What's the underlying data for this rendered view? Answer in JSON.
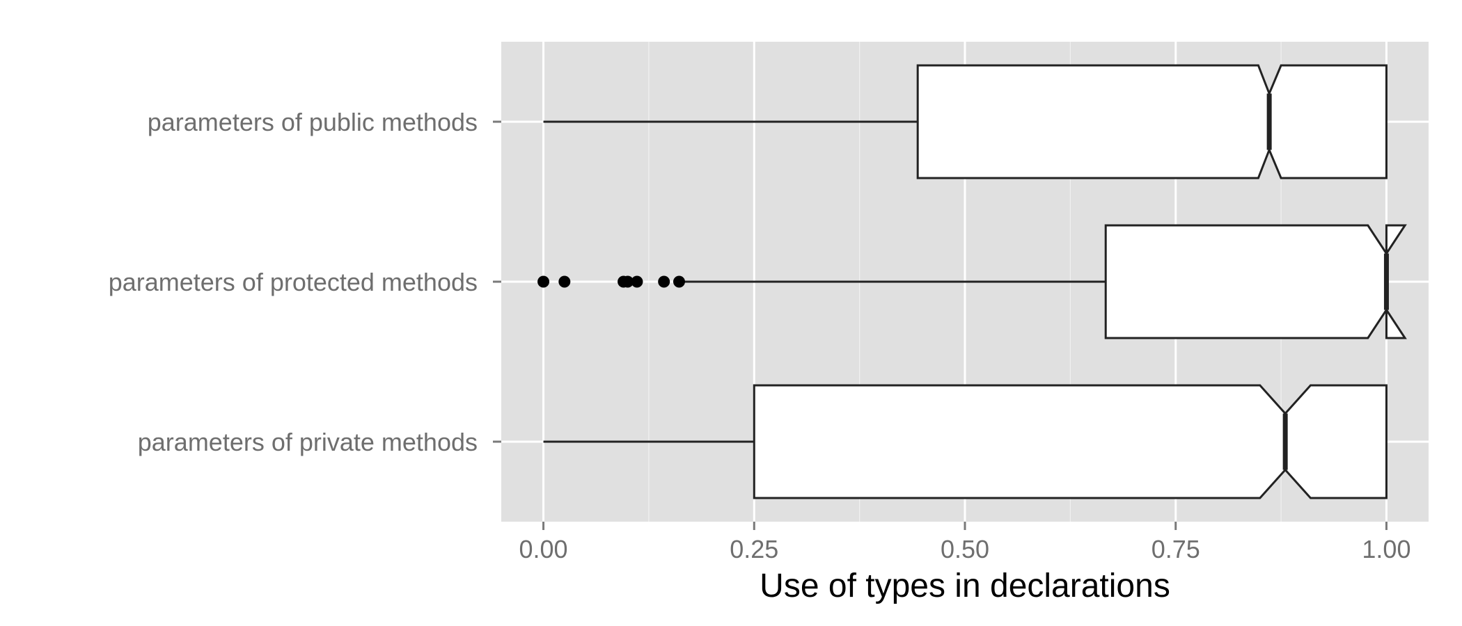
{
  "chart_data": {
    "type": "boxplot",
    "orientation": "horizontal",
    "notched": true,
    "xlabel": "Use of types in declarations",
    "ylabel": "",
    "xlim": [
      -0.05,
      1.05
    ],
    "x_ticks": [
      0.0,
      0.25,
      0.5,
      0.75,
      1.0
    ],
    "x_tick_labels": [
      "0.00",
      "0.25",
      "0.50",
      "0.75",
      "1.00"
    ],
    "grid": true,
    "panel_background": "#e0e0e0",
    "grid_color": "#ffffff",
    "box_fill": "#ffffff",
    "line_color": "#222222",
    "outlier_color": "#000000",
    "categories": [
      "parameters of public methods",
      "parameters of protected methods",
      "parameters of private methods"
    ],
    "boxes": [
      {
        "category": "parameters of public methods",
        "whisker_low": 0.0,
        "q1": 0.444,
        "median": 0.861,
        "q3": 1.0,
        "whisker_high": 1.0,
        "notch_low": 0.848,
        "notch_high": 0.875,
        "outliers": []
      },
      {
        "category": "parameters of protected methods",
        "whisker_low": 0.167,
        "q1": 0.667,
        "median": 1.0,
        "q3": 1.0,
        "whisker_high": 1.0,
        "notch_low": 0.978,
        "notch_high": 1.022,
        "outliers": [
          0.0,
          0.025,
          0.095,
          0.1,
          0.111,
          0.143,
          0.161
        ]
      },
      {
        "category": "parameters of private methods",
        "whisker_low": 0.0,
        "q1": 0.25,
        "median": 0.88,
        "q3": 1.0,
        "whisker_high": 1.0,
        "notch_low": 0.85,
        "notch_high": 0.91,
        "outliers": []
      }
    ]
  }
}
